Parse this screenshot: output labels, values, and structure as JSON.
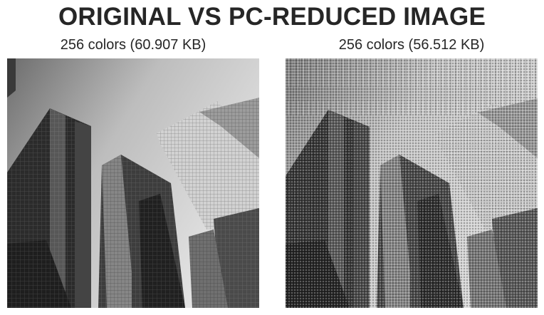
{
  "figure": {
    "title": "ORIGINAL VS PC-REDUCED IMAGE",
    "panels": [
      {
        "caption": "256 colors (60.907 KB)",
        "content": "skyscrapers-grayscale-photo"
      },
      {
        "caption": "256 colors (56.512 KB)",
        "content": "skyscrapers-grayscale-photo-pc-reduced"
      }
    ]
  },
  "colors": {
    "text": "#262626",
    "background": "#ffffff"
  }
}
